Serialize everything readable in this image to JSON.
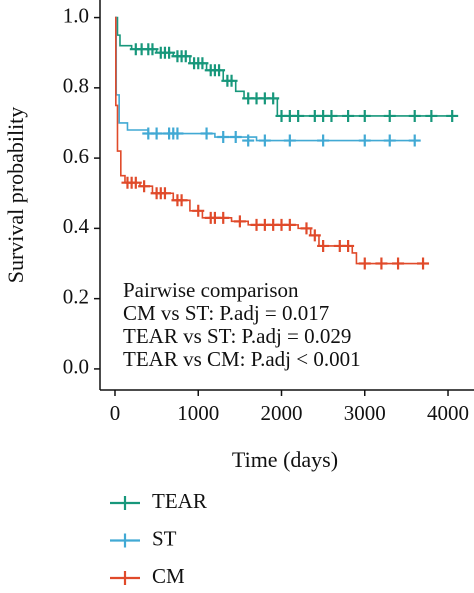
{
  "chart_data": {
    "type": "survival",
    "x_label": "Time (days)",
    "y_label": "Survival probability",
    "xlim": [
      -180,
      4300
    ],
    "ylim": [
      -0.06,
      1.05
    ],
    "xticks": [
      0,
      1000,
      2000,
      3000,
      4000
    ],
    "yticks": [
      {
        "value": 0,
        "label": "0.0"
      },
      {
        "value": 0.2,
        "label": "0.2"
      },
      {
        "value": 0.4,
        "label": "0.4"
      },
      {
        "value": 0.6,
        "label": "0.6"
      },
      {
        "value": 0.8,
        "label": "0.8"
      },
      {
        "value": 1,
        "label": "1.0"
      }
    ],
    "annotations": [
      "Pairwise comparison",
      "CM vs ST: P.adj = 0.017",
      "TEAR vs ST: P.adj = 0.029",
      "TEAR vs CM: P.adj < 0.001"
    ],
    "series": [
      {
        "name": "TEAR",
        "color": "#17977b",
        "x": [
          0,
          30,
          60,
          200,
          500,
          700,
          900,
          1100,
          1300,
          1450,
          1550,
          1950,
          4100
        ],
        "values": [
          1.0,
          0.95,
          0.92,
          0.91,
          0.9,
          0.89,
          0.87,
          0.85,
          0.82,
          0.79,
          0.77,
          0.72,
          0.72
        ],
        "censored": {
          "x": [
            250,
            320,
            400,
            450,
            550,
            600,
            650,
            750,
            800,
            850,
            950,
            1000,
            1050,
            1150,
            1200,
            1250,
            1350,
            1400,
            1600,
            1700,
            1800,
            1900,
            2000,
            2100,
            2200,
            2400,
            2500,
            2600,
            2800,
            3000,
            3300,
            3600,
            3800,
            4050
          ],
          "values": [
            0.91,
            0.91,
            0.91,
            0.91,
            0.9,
            0.9,
            0.9,
            0.89,
            0.89,
            0.89,
            0.87,
            0.87,
            0.87,
            0.85,
            0.85,
            0.85,
            0.82,
            0.82,
            0.77,
            0.77,
            0.77,
            0.77,
            0.72,
            0.72,
            0.72,
            0.72,
            0.72,
            0.72,
            0.72,
            0.72,
            0.72,
            0.72,
            0.72,
            0.72
          ]
        }
      },
      {
        "name": "ST",
        "color": "#41a9d4",
        "x": [
          0,
          15,
          50,
          150,
          400,
          1200,
          1700,
          3650
        ],
        "values": [
          1.0,
          0.78,
          0.7,
          0.68,
          0.67,
          0.66,
          0.65,
          0.65
        ],
        "censored": {
          "x": [
            400,
            500,
            650,
            700,
            750,
            1100,
            1300,
            1450,
            1600,
            1800,
            2100,
            2500,
            3000,
            3300,
            3600
          ],
          "values": [
            0.67,
            0.67,
            0.67,
            0.67,
            0.67,
            0.67,
            0.66,
            0.66,
            0.65,
            0.65,
            0.65,
            0.65,
            0.65,
            0.65,
            0.65
          ]
        }
      },
      {
        "name": "CM",
        "color": "#e04a2a",
        "x": [
          0,
          10,
          30,
          70,
          120,
          300,
          450,
          700,
          900,
          1050,
          1400,
          1600,
          2200,
          2350,
          2450,
          2850,
          2900,
          3750
        ],
        "values": [
          1.0,
          0.75,
          0.62,
          0.55,
          0.53,
          0.52,
          0.5,
          0.48,
          0.45,
          0.43,
          0.42,
          0.41,
          0.4,
          0.38,
          0.35,
          0.33,
          0.3,
          0.3
        ],
        "censored": {
          "x": [
            150,
            200,
            250,
            350,
            500,
            550,
            600,
            750,
            800,
            1000,
            1150,
            1200,
            1300,
            1500,
            1700,
            1800,
            1900,
            2000,
            2100,
            2300,
            2400,
            2500,
            2700,
            2800,
            3000,
            3200,
            3400,
            3700
          ],
          "values": [
            0.53,
            0.53,
            0.53,
            0.52,
            0.5,
            0.5,
            0.5,
            0.48,
            0.48,
            0.45,
            0.43,
            0.43,
            0.43,
            0.42,
            0.41,
            0.41,
            0.41,
            0.41,
            0.41,
            0.4,
            0.38,
            0.35,
            0.35,
            0.35,
            0.3,
            0.3,
            0.3,
            0.3
          ]
        }
      }
    ]
  }
}
